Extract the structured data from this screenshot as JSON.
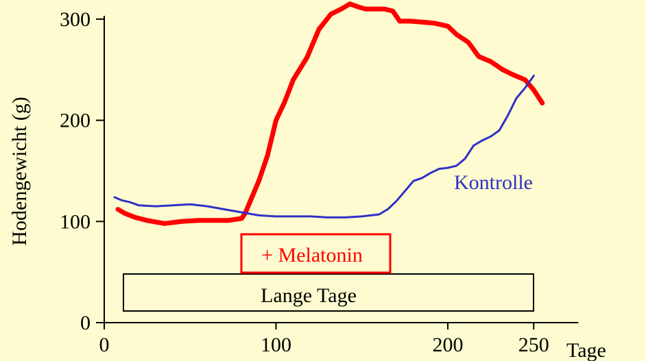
{
  "chart_data": {
    "type": "line",
    "xlabel": "Tage",
    "ylabel": "Hodengewicht (g)",
    "xlim": [
      0,
      280
    ],
    "ylim": [
      0,
      310
    ],
    "x_ticks": [
      0,
      100,
      200,
      250
    ],
    "y_ticks": [
      0,
      100,
      200,
      300
    ],
    "grid": false,
    "series": [
      {
        "name": "+ Melatonin",
        "color": "#ff0000",
        "x": [
          8,
          12,
          18,
          25,
          35,
          45,
          55,
          65,
          72,
          80,
          82,
          85,
          90,
          95,
          100,
          105,
          110,
          118,
          125,
          132,
          138,
          143,
          148,
          150,
          152,
          158,
          163,
          168,
          172,
          178,
          185,
          192,
          200,
          205,
          212,
          218,
          225,
          232,
          238,
          245,
          250,
          255
        ],
        "y": [
          112,
          108,
          104,
          101,
          98,
          100,
          101,
          101,
          101,
          103,
          108,
          120,
          140,
          165,
          200,
          218,
          240,
          262,
          290,
          305,
          310,
          315,
          312,
          311,
          310,
          310,
          310,
          308,
          298,
          298,
          297,
          296,
          293,
          285,
          277,
          263,
          258,
          250,
          245,
          240,
          230,
          217
        ]
      },
      {
        "name": "Kontrolle",
        "color": "#3030c8",
        "x": [
          6,
          10,
          15,
          20,
          30,
          40,
          50,
          60,
          70,
          80,
          90,
          100,
          110,
          120,
          130,
          140,
          150,
          160,
          165,
          170,
          175,
          180,
          185,
          190,
          195,
          200,
          205,
          210,
          215,
          220,
          225,
          230,
          235,
          240,
          245,
          250
        ],
        "y": [
          124,
          121,
          119,
          116,
          115,
          116,
          117,
          115,
          112,
          109,
          106,
          105,
          105,
          105,
          104,
          104,
          105,
          107,
          112,
          120,
          130,
          140,
          143,
          148,
          152,
          153,
          155,
          162,
          175,
          180,
          184,
          190,
          205,
          222,
          232,
          244
        ]
      }
    ],
    "annotations": {
      "kontrolle_label": "Kontrolle",
      "melatonin_label": "+ Melatonin",
      "lange_tage_label": "Lange Tage"
    }
  }
}
